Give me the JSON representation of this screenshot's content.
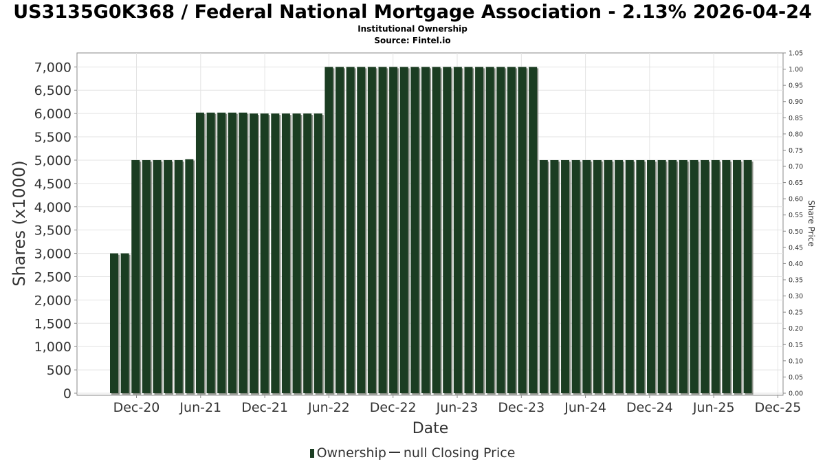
{
  "title": "US3135G0K368 / Federal National Mortgage Association - 2.13% 2026-04-24",
  "subtitle_1": "Institutional Ownership",
  "subtitle_2": "Source: Fintel.io",
  "legend": {
    "ownership_label": "Ownership",
    "price_label": "null Closing Price"
  },
  "colors": {
    "bar": "#1b3d22",
    "bar_shadow": "#8a8f86",
    "grid": "#e3e3e3",
    "axis": "#888888"
  },
  "chart_data": {
    "type": "bar",
    "title": "US3135G0K368 / Federal National Mortgage Association - 2.13% 2026-04-24",
    "xlabel": "Date",
    "ylabel": "Shares (x1000)",
    "y2label": "Share Price",
    "ylim": [
      0,
      7300
    ],
    "y2lim": [
      0,
      1.05
    ],
    "grid": true,
    "legend_position": "bottom",
    "x_ticks": [
      "Dec-20",
      "Jun-21",
      "Dec-21",
      "Jun-22",
      "Dec-22",
      "Jun-23",
      "Dec-23",
      "Jun-24",
      "Dec-24",
      "Jun-25",
      "Dec-25"
    ],
    "y_ticks": [
      "0",
      "500",
      "1,000",
      "1,500",
      "2,000",
      "2,500",
      "3,000",
      "3,500",
      "4,000",
      "4,500",
      "5,000",
      "5,500",
      "6,000",
      "6,500",
      "7,000"
    ],
    "y2_ticks": [
      "0.00",
      "0.05",
      "0.10",
      "0.15",
      "0.20",
      "0.25",
      "0.30",
      "0.35",
      "0.40",
      "0.45",
      "0.50",
      "0.55",
      "0.60",
      "0.65",
      "0.70",
      "0.75",
      "0.80",
      "0.85",
      "0.90",
      "0.95",
      "1.00",
      "1.05"
    ],
    "series": [
      {
        "name": "Ownership",
        "values": [
          3000,
          3000,
          5000,
          5000,
          5000,
          5000,
          5000,
          5020,
          6020,
          6020,
          6020,
          6020,
          6020,
          6000,
          6000,
          6000,
          6000,
          6000,
          6000,
          6000,
          7000,
          7000,
          7000,
          7000,
          7000,
          7000,
          7000,
          7000,
          7000,
          7000,
          7000,
          7000,
          7000,
          7000,
          7000,
          7000,
          7000,
          7000,
          7000,
          7000,
          5000,
          5000,
          5000,
          5000,
          5000,
          5000,
          5000,
          5000,
          5000,
          5000,
          5000,
          5000,
          5000,
          5000,
          5000,
          5000,
          5000,
          5000,
          5000,
          5000
        ]
      }
    ]
  }
}
